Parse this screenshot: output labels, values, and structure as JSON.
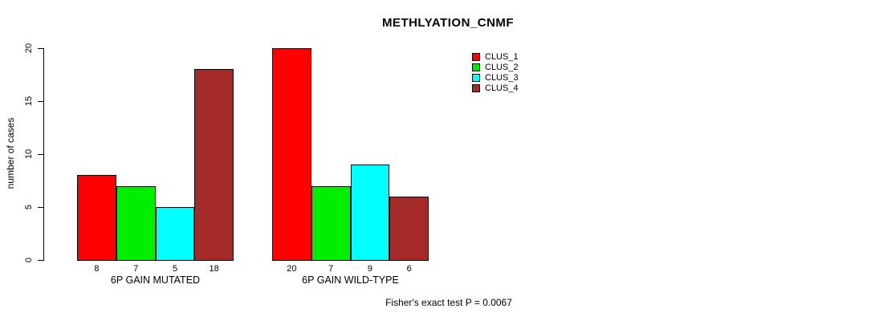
{
  "chart_data": {
    "type": "bar",
    "title": "METHLYATION_CNMF",
    "ylabel": "number of cases",
    "xlabel": "",
    "footnote": "Fisher's exact test P = 0.0067",
    "ylim": [
      0,
      20
    ],
    "yticks": [
      0,
      5,
      10,
      15,
      20
    ],
    "grid": false,
    "legend_position": "top-right",
    "bar_border_color": "#000000",
    "categories": [
      "6P GAIN MUTATED",
      "6P GAIN WILD-TYPE"
    ],
    "series": [
      {
        "name": "CLUS_1",
        "color": "#ff0000",
        "values": [
          8,
          20
        ]
      },
      {
        "name": "CLUS_2",
        "color": "#00ee00",
        "values": [
          7,
          7
        ]
      },
      {
        "name": "CLUS_3",
        "color": "#00ffff",
        "values": [
          5,
          9
        ]
      },
      {
        "name": "CLUS_4",
        "color": "#a52a2a",
        "values": [
          18,
          6
        ]
      }
    ],
    "groups": [
      {
        "label": "6P GAIN MUTATED",
        "values": [
          8,
          7,
          5,
          18
        ]
      },
      {
        "label": "6P GAIN WILD-TYPE",
        "values": [
          20,
          7,
          9,
          6
        ]
      }
    ]
  }
}
